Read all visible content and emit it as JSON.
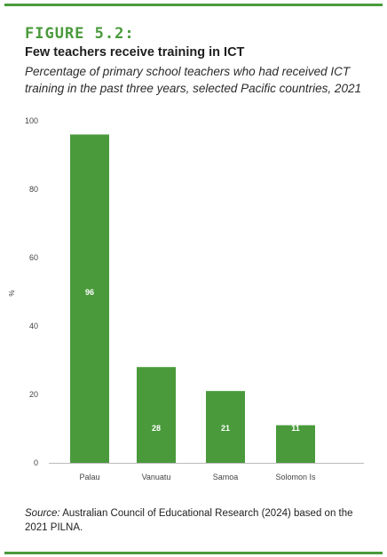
{
  "figure_label": "FIGURE 5.2:",
  "title": "Few teachers receive training in ICT",
  "subtitle": "Percentage of primary school teachers who had received ICT training in the past three years, selected Pacific countries, 2021",
  "source": {
    "label": "Source:",
    "text": "Australian Council of Educational Research (2024) based on the 2021 PILNA."
  },
  "colors": {
    "bar": "#4a9a3c",
    "accent": "#4a9a3c",
    "axis": "#bbbbbb",
    "label": "#444444"
  },
  "chart_data": {
    "type": "bar",
    "categories": [
      "Palau",
      "Vanuatu",
      "Samoa",
      "Solomon Is"
    ],
    "values": [
      96,
      28,
      21,
      11
    ],
    "ylabel": "%",
    "ylim": [
      0,
      100
    ],
    "yticks": [
      0,
      20,
      40,
      60,
      80,
      100
    ],
    "data_labels": [
      "96",
      "28",
      "21",
      "11"
    ],
    "grid": false
  }
}
